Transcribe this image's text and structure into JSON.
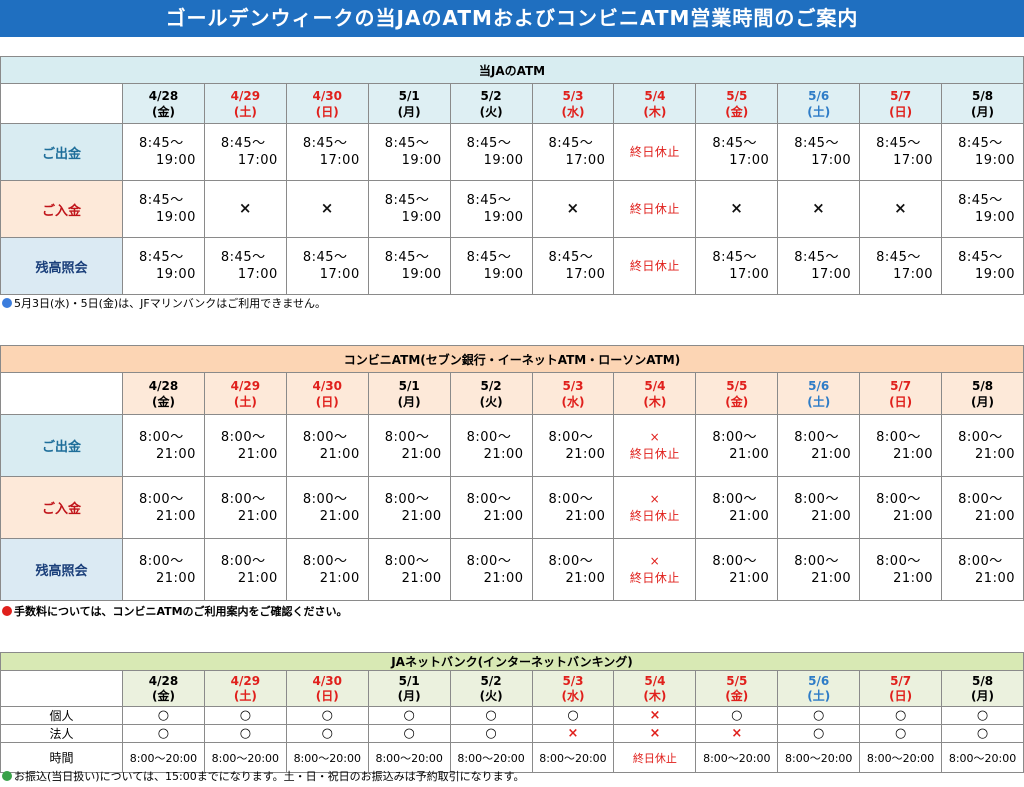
{
  "page_title": "ゴールデンウィークの当JAのATMおよびコンビニATM営業時間のご案内",
  "colors": {
    "banner": "#1f6fc0",
    "red": "#e0201c",
    "blue": "#2e7cc7"
  },
  "dates": [
    {
      "date": "4/28",
      "dow": "(金)",
      "color": "black"
    },
    {
      "date": "4/29",
      "dow": "(土)",
      "color": "red"
    },
    {
      "date": "4/30",
      "dow": "(日)",
      "color": "red"
    },
    {
      "date": "5/1",
      "dow": "(月)",
      "color": "black"
    },
    {
      "date": "5/2",
      "dow": "(火)",
      "color": "black"
    },
    {
      "date": "5/3",
      "dow": "(水)",
      "color": "red"
    },
    {
      "date": "5/4",
      "dow": "(木)",
      "color": "red"
    },
    {
      "date": "5/5",
      "dow": "(金)",
      "color": "red"
    },
    {
      "date": "5/6",
      "dow": "(土)",
      "color": "blue"
    },
    {
      "date": "5/7",
      "dow": "(日)",
      "color": "red"
    },
    {
      "date": "5/8",
      "dow": "(月)",
      "color": "black"
    }
  ],
  "ja_atm": {
    "title": "当JAのATM",
    "rows": [
      {
        "label": "ご出金",
        "style": "blue",
        "cells": [
          [
            "8:45～",
            "19:00"
          ],
          [
            "8:45～",
            "17:00"
          ],
          [
            "8:45～",
            "17:00"
          ],
          [
            "8:45～",
            "19:00"
          ],
          [
            "8:45～",
            "19:00"
          ],
          [
            "8:45～",
            "17:00"
          ],
          [
            "終日休止"
          ],
          [
            "8:45～",
            "17:00"
          ],
          [
            "8:45～",
            "17:00"
          ],
          [
            "8:45～",
            "17:00"
          ],
          [
            "8:45～",
            "19:00"
          ]
        ]
      },
      {
        "label": "ご入金",
        "style": "peach",
        "cells": [
          [
            "8:45～",
            "19:00"
          ],
          [
            "×"
          ],
          [
            "×"
          ],
          [
            "8:45～",
            "19:00"
          ],
          [
            "8:45～",
            "19:00"
          ],
          [
            "×"
          ],
          [
            "終日休止"
          ],
          [
            "×"
          ],
          [
            "×"
          ],
          [
            "×"
          ],
          [
            "8:45～",
            "19:00"
          ]
        ]
      },
      {
        "label": "残高照会",
        "style": "navy",
        "cells": [
          [
            "8:45～",
            "19:00"
          ],
          [
            "8:45～",
            "17:00"
          ],
          [
            "8:45～",
            "17:00"
          ],
          [
            "8:45～",
            "19:00"
          ],
          [
            "8:45～",
            "19:00"
          ],
          [
            "8:45～",
            "17:00"
          ],
          [
            "終日休止"
          ],
          [
            "8:45～",
            "17:00"
          ],
          [
            "8:45～",
            "17:00"
          ],
          [
            "8:45～",
            "17:00"
          ],
          [
            "8:45～",
            "19:00"
          ]
        ]
      }
    ],
    "note": "5月3日(水)・5日(金)は、JFマリンバンクはご利用できません。",
    "note_dot_color": "#3b7ddd"
  },
  "conv_atm": {
    "title": "コンビニATM(セブン銀行・イーネットATM・ローソンATM)",
    "rows": [
      {
        "label": "ご出金",
        "style": "blue",
        "cells": [
          [
            "8:00～",
            "21:00"
          ],
          [
            "8:00～",
            "21:00"
          ],
          [
            "8:00～",
            "21:00"
          ],
          [
            "8:00～",
            "21:00"
          ],
          [
            "8:00～",
            "21:00"
          ],
          [
            "8:00～",
            "21:00"
          ],
          [
            "×",
            "終日休止"
          ],
          [
            "8:00～",
            "21:00"
          ],
          [
            "8:00～",
            "21:00"
          ],
          [
            "8:00～",
            "21:00"
          ],
          [
            "8:00～",
            "21:00"
          ]
        ]
      },
      {
        "label": "ご入金",
        "style": "peach",
        "cells": [
          [
            "8:00～",
            "21:00"
          ],
          [
            "8:00～",
            "21:00"
          ],
          [
            "8:00～",
            "21:00"
          ],
          [
            "8:00～",
            "21:00"
          ],
          [
            "8:00～",
            "21:00"
          ],
          [
            "8:00～",
            "21:00"
          ],
          [
            "×",
            "終日休止"
          ],
          [
            "8:00～",
            "21:00"
          ],
          [
            "8:00～",
            "21:00"
          ],
          [
            "8:00～",
            "21:00"
          ],
          [
            "8:00～",
            "21:00"
          ]
        ]
      },
      {
        "label": "残高照会",
        "style": "navy",
        "cells": [
          [
            "8:00～",
            "21:00"
          ],
          [
            "8:00～",
            "21:00"
          ],
          [
            "8:00～",
            "21:00"
          ],
          [
            "8:00～",
            "21:00"
          ],
          [
            "8:00～",
            "21:00"
          ],
          [
            "8:00～",
            "21:00"
          ],
          [
            "×",
            "終日休止"
          ],
          [
            "8:00～",
            "21:00"
          ],
          [
            "8:00～",
            "21:00"
          ],
          [
            "8:00～",
            "21:00"
          ],
          [
            "8:00～",
            "21:00"
          ]
        ]
      }
    ],
    "note": "手数料については、コンビニATMのご利用案内をご確認ください。",
    "note_dot_color": "#e0201c"
  },
  "netbank": {
    "title": "JAネットバンク(インターネットバンキング)",
    "rows": [
      {
        "label": "個人",
        "cells": [
          "○",
          "○",
          "○",
          "○",
          "○",
          "○",
          "×",
          "○",
          "○",
          "○",
          "○"
        ]
      },
      {
        "label": "法人",
        "cells": [
          "○",
          "○",
          "○",
          "○",
          "○",
          "×",
          "×",
          "×",
          "○",
          "○",
          "○"
        ]
      },
      {
        "label": "時間",
        "cells": [
          "8:00～20:00",
          "8:00～20:00",
          "8:00～20:00",
          "8:00～20:00",
          "8:00～20:00",
          "8:00～20:00",
          "終日休止",
          "8:00～20:00",
          "8:00～20:00",
          "8:00～20:00",
          "8:00～20:00"
        ]
      }
    ],
    "note": "お振込(当日扱い)については、15:00までになります。土・日・祝日のお振込みは予約取引になります。",
    "note_dot_color": "#3aa24a"
  }
}
